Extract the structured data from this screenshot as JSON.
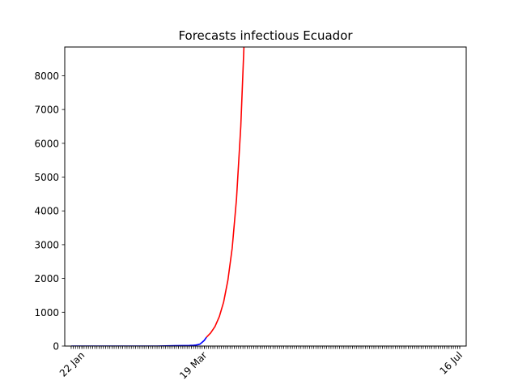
{
  "chart_data": {
    "type": "line",
    "title": "Forecasts infectious Ecuador",
    "xlabel": "",
    "ylabel": "",
    "x_axis": {
      "unit": "date",
      "range": [
        "2020-01-14",
        "2020-07-19"
      ],
      "start_date": "2020-01-17",
      "end_date": "2020-07-16",
      "labeled_ticks": [
        {
          "date": "2020-01-22",
          "label": "22 Jan"
        },
        {
          "date": "2020-03-19",
          "label": "19 Mar"
        },
        {
          "date": "2020-07-16",
          "label": "16 Jul"
        }
      ],
      "minor_tick_interval_days": 1,
      "tick_label_rotation_deg": 45
    },
    "y_axis": {
      "range": [
        0,
        8850
      ],
      "ticks": [
        0,
        1000,
        2000,
        3000,
        4000,
        5000,
        6000,
        7000,
        8000
      ]
    },
    "grid": false,
    "legend": "none",
    "series": [
      {
        "color": "#0000ff",
        "points": [
          [
            "2020-01-17",
            0
          ],
          [
            "2020-01-25",
            0
          ],
          [
            "2020-02-02",
            0
          ],
          [
            "2020-02-10",
            0
          ],
          [
            "2020-02-18",
            0
          ],
          [
            "2020-02-26",
            0
          ],
          [
            "2020-03-01",
            6
          ],
          [
            "2020-03-05",
            10
          ],
          [
            "2020-03-09",
            14
          ],
          [
            "2020-03-12",
            17
          ],
          [
            "2020-03-14",
            23
          ],
          [
            "2020-03-15",
            28
          ],
          [
            "2020-03-16",
            40
          ],
          [
            "2020-03-17",
            58
          ],
          [
            "2020-03-18",
            111
          ],
          [
            "2020-03-19",
            168
          ],
          [
            "2020-03-20",
            260
          ]
        ]
      },
      {
        "color": "#ff0000",
        "points": [
          [
            "2020-03-20",
            260
          ],
          [
            "2020-03-22",
            390
          ],
          [
            "2020-03-24",
            580
          ],
          [
            "2020-03-26",
            870
          ],
          [
            "2020-03-28",
            1300
          ],
          [
            "2020-03-30",
            1950
          ],
          [
            "2020-04-01",
            2900
          ],
          [
            "2020-04-03",
            4350
          ],
          [
            "2020-04-05",
            6500
          ],
          [
            "2020-04-07",
            9700
          ]
        ]
      }
    ]
  }
}
